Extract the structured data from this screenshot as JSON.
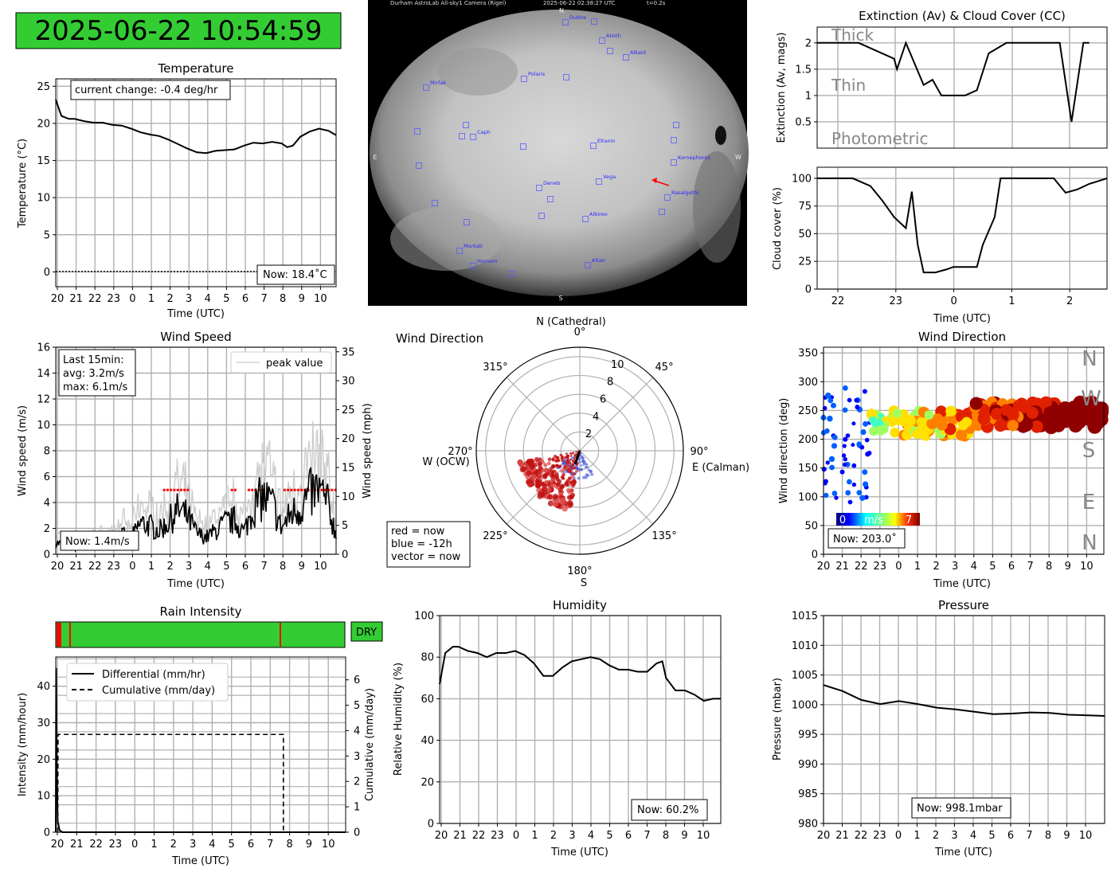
{
  "clock": {
    "text": "2025-06-22 10:54:59",
    "bg": "#33cc33"
  },
  "allsky": {
    "header_left": "Durham AstroLab All-sky1 Camera (Rigel)",
    "header_mid": "2025-06-22 02:38:27 UTC",
    "header_right": "t=0.2s",
    "compass": {
      "n": "N",
      "s": "S",
      "e": "E",
      "w": "W"
    },
    "stars": [
      "Dubhe",
      "Alioth",
      "Alkaid",
      "Mirfak",
      "Polaris",
      "Caph",
      "Eltanin",
      "Kornephoros",
      "Vega",
      "Rasalgethi",
      "Deneb",
      "Albireo",
      "Markab",
      "Homam",
      "Altair"
    ]
  },
  "chart_data": [
    {
      "id": "temperature",
      "type": "line",
      "title": "Temperature",
      "xlabel": "Time (UTC)",
      "ylabel": "Temperature (°C)",
      "xticks": [
        "20",
        "21",
        "22",
        "23",
        "0",
        "1",
        "2",
        "3",
        "4",
        "5",
        "6",
        "7",
        "8",
        "9",
        "10"
      ],
      "ylim": [
        -2,
        26
      ],
      "yticks": [
        0,
        5,
        10,
        15,
        20,
        25
      ],
      "x_hours_since_20": [
        0.0,
        0.3,
        0.7,
        1.0,
        1.5,
        2.0,
        2.5,
        3.0,
        3.5,
        4.0,
        4.5,
        5.0,
        5.5,
        6.0,
        6.5,
        7.0,
        7.5,
        8.0,
        8.5,
        9.0,
        9.5,
        10.0,
        10.5,
        11.0,
        11.5,
        12.0,
        12.3,
        12.6,
        13.0,
        13.5,
        14.0,
        14.5,
        14.9
      ],
      "values": [
        23.2,
        21.0,
        20.6,
        20.6,
        20.3,
        20.1,
        20.1,
        19.8,
        19.7,
        19.3,
        18.8,
        18.5,
        18.3,
        17.8,
        17.2,
        16.6,
        16.1,
        16.0,
        16.3,
        16.4,
        16.5,
        17.0,
        17.4,
        17.3,
        17.5,
        17.3,
        16.8,
        17.0,
        18.2,
        18.9,
        19.3,
        19.0,
        18.4
      ],
      "annotation": "current change: -0.4 deg/hr",
      "now_label": "Now: 18.4˚C",
      "freezing_line": 0
    },
    {
      "id": "extinction",
      "type": "line",
      "title": "Extinction (Av) & Cloud Cover (CC)",
      "ylabel": "Extinction (Av, mags)",
      "ylim": [
        0,
        2.3
      ],
      "yticks": [
        0.5,
        1.0,
        1.5,
        2.0
      ],
      "zones": [
        "Thick",
        "Thin",
        "Photometric"
      ],
      "x_hours_rel_0": [
        -2.3,
        -1.6,
        -1.0,
        -0.95,
        -0.8,
        -0.5,
        -0.35,
        -0.2,
        -0.1,
        0.0,
        0.2,
        0.4,
        0.6,
        0.9,
        1.2,
        1.5,
        1.8,
        2.0,
        2.2,
        2.3
      ],
      "values": [
        2.0,
        2.0,
        1.7,
        1.5,
        2.0,
        1.2,
        1.3,
        1.0,
        1.0,
        1.0,
        1.0,
        1.1,
        1.8,
        2.0,
        2.0,
        2.0,
        2.0,
        0.5,
        2.0,
        2.0
      ]
    },
    {
      "id": "cloud_cover",
      "type": "line",
      "xlabel": "Time (UTC)",
      "ylabel": "Cloud cover (%)",
      "xticks": [
        "22",
        "23",
        "0",
        "1",
        "2"
      ],
      "ylim": [
        0,
        110
      ],
      "yticks": [
        0,
        25,
        50,
        75,
        100
      ],
      "x_hours_rel_0": [
        -2.3,
        -1.7,
        -1.4,
        -1.2,
        -1.0,
        -0.8,
        -0.7,
        -0.6,
        -0.5,
        -0.3,
        -0.1,
        0.0,
        0.2,
        0.4,
        0.5,
        0.7,
        0.8,
        0.9,
        1.0,
        1.4,
        1.7,
        1.9,
        2.1,
        2.3,
        2.6
      ],
      "values": [
        100,
        100,
        93,
        80,
        65,
        55,
        88,
        40,
        15,
        15,
        18,
        20,
        20,
        20,
        40,
        65,
        100,
        100,
        100,
        100,
        100,
        87,
        90,
        95,
        100
      ]
    },
    {
      "id": "wind_speed",
      "type": "line",
      "title": "Wind Speed",
      "xlabel": "Time (UTC)",
      "ylabel": "Wind speed (m/s)",
      "y2label": "Wind speed (mph)",
      "xticks": [
        "20",
        "21",
        "22",
        "23",
        "0",
        "1",
        "2",
        "3",
        "4",
        "5",
        "6",
        "7",
        "8",
        "9",
        "10"
      ],
      "ylim": [
        0,
        16
      ],
      "yticks": [
        0,
        2,
        4,
        6,
        8,
        10,
        12,
        14,
        16
      ],
      "y2ticks": [
        0,
        5,
        10,
        15,
        20,
        25,
        30,
        35
      ],
      "x_hours_since_20": [
        0.0,
        1.0,
        2.0,
        3.0,
        3.5,
        4.0,
        4.5,
        5.0,
        5.5,
        6.0,
        6.5,
        7.0,
        7.5,
        8.0,
        8.5,
        9.0,
        9.5,
        10.0,
        10.5,
        11.0,
        11.5,
        12.0,
        12.5,
        13.0,
        13.5,
        14.0,
        14.5,
        14.9
      ],
      "values": [
        0.9,
        0.5,
        0.8,
        1.0,
        1.5,
        1.2,
        2.4,
        2.2,
        1.8,
        2.5,
        3.4,
        2.9,
        1.6,
        1.3,
        1.8,
        2.4,
        2.6,
        1.7,
        3.6,
        4.4,
        3.9,
        2.0,
        3.1,
        3.6,
        4.6,
        4.9,
        3.7,
        1.4
      ],
      "peak_label": "peak value",
      "stats": [
        "Last 15min:",
        "avg: 3.2m/s",
        "max: 6.1m/s"
      ],
      "now_label": "Now: 1.4m/s"
    },
    {
      "id": "wind_polar",
      "type": "scatter",
      "title": "Wind Direction",
      "rticks": [
        2,
        4,
        6,
        8,
        10
      ],
      "angle_labels": [
        "0°",
        "45°",
        "90°",
        "135°",
        "180°",
        "225°",
        "270°",
        "315°"
      ],
      "north_label": "N (Cathedral)",
      "east_label": "E (Calman)",
      "west_label": "W (OCW)",
      "south_label": "S",
      "legend": [
        "red = now",
        "blue = -12h",
        "vector = now"
      ]
    },
    {
      "id": "wind_direction",
      "type": "scatter",
      "title": "Wind Direction",
      "xlabel": "Time (UTC)",
      "ylabel": "Wind direction (deg)",
      "xticks": [
        "20",
        "21",
        "22",
        "23",
        "0",
        "1",
        "2",
        "3",
        "4",
        "5",
        "6",
        "7",
        "8",
        "9",
        "10"
      ],
      "ylim": [
        0,
        360
      ],
      "yticks": [
        0,
        50,
        100,
        150,
        200,
        250,
        300,
        350
      ],
      "compass_letters": [
        "N",
        "W",
        "S",
        "E",
        "N"
      ],
      "colorbar": {
        "min": "0",
        "unit": "m/s",
        "max": "7"
      },
      "now_label": "Now: 203.0˚"
    },
    {
      "id": "rain",
      "type": "line",
      "title": "Rain Intensity",
      "status": "DRY",
      "xlabel": "Time (UTC)",
      "ylabel": "Intensity (mm/hour)",
      "y2label": "Cumulative (mm/day)",
      "xticks": [
        "20",
        "21",
        "22",
        "23",
        "0",
        "1",
        "2",
        "3",
        "4",
        "5",
        "6",
        "7",
        "8",
        "9",
        "10"
      ],
      "ylim": [
        0,
        48
      ],
      "yticks": [
        0,
        10,
        20,
        30,
        40
      ],
      "y2ticks": [
        0,
        1,
        2,
        3,
        4,
        5,
        6
      ],
      "legend": [
        "Differential (mm/hr)",
        "Cumulative (mm/day)"
      ],
      "cumulative_value": 3.85,
      "cumulative_reset_hour": 7.5
    },
    {
      "id": "humidity",
      "type": "line",
      "title": "Humidity",
      "xlabel": "Time (UTC)",
      "ylabel": "Relative Humidity (%)",
      "xticks": [
        "20",
        "21",
        "22",
        "23",
        "0",
        "1",
        "2",
        "3",
        "4",
        "5",
        "6",
        "7",
        "8",
        "9",
        "10"
      ],
      "ylim": [
        0,
        100
      ],
      "yticks": [
        0,
        20,
        40,
        60,
        80,
        100
      ],
      "x_hours_since_20": [
        0.0,
        0.3,
        0.7,
        1.0,
        1.5,
        2.0,
        2.5,
        3.0,
        3.5,
        4.0,
        4.5,
        5.0,
        5.5,
        6.0,
        6.5,
        7.0,
        7.5,
        8.0,
        8.5,
        9.0,
        9.5,
        10.0,
        10.5,
        11.0,
        11.5,
        11.8,
        12.0,
        12.5,
        13.0,
        13.5,
        14.0,
        14.5,
        14.9
      ],
      "values": [
        67,
        82,
        85,
        85,
        83,
        82,
        80,
        82,
        82,
        83,
        81,
        77,
        71,
        71,
        75,
        78,
        79,
        80,
        79,
        76,
        74,
        74,
        73,
        73,
        77,
        78,
        70,
        64,
        64,
        62,
        59,
        60,
        60
      ],
      "now_label": "Now: 60.2%"
    },
    {
      "id": "pressure",
      "type": "line",
      "title": "Pressure",
      "xlabel": "Time (UTC)",
      "ylabel": "Pressure (mbar)",
      "xticks": [
        "20",
        "21",
        "22",
        "23",
        "0",
        "1",
        "2",
        "3",
        "4",
        "5",
        "6",
        "7",
        "8",
        "9",
        "10"
      ],
      "ylim": [
        980,
        1015
      ],
      "yticks": [
        980,
        985,
        990,
        995,
        1000,
        1005,
        1010,
        1015
      ],
      "x_hours_since_20": [
        0.0,
        1.0,
        2.0,
        3.0,
        4.0,
        5.0,
        6.0,
        7.0,
        8.0,
        9.0,
        10.0,
        11.0,
        12.0,
        13.0,
        14.0,
        14.9
      ],
      "values": [
        1003.3,
        1002.3,
        1000.8,
        1000.1,
        1000.6,
        1000.1,
        999.5,
        999.2,
        998.8,
        998.4,
        998.5,
        998.7,
        998.6,
        998.3,
        998.2,
        998.1
      ],
      "now_label": "Now: 998.1mbar"
    }
  ]
}
